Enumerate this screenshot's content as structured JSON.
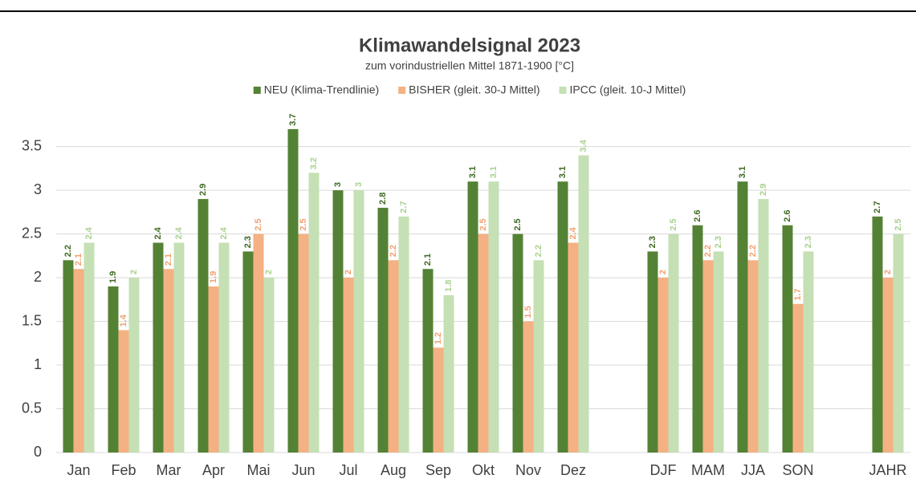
{
  "chart_data": {
    "type": "bar",
    "title": "Klimawandelsignal 2023",
    "subtitle": "zum vorindustriellen Mittel 1871-1900 [°C]",
    "categories": [
      "Jan",
      "Feb",
      "Mar",
      "Apr",
      "Mai",
      "Jun",
      "Jul",
      "Aug",
      "Sep",
      "Okt",
      "Nov",
      "Dez",
      null,
      "DJF",
      "MAM",
      "JJA",
      "SON",
      null,
      "JAHR"
    ],
    "series": [
      {
        "name": "NEU (Klima-Trendlinie)",
        "color": "#548235",
        "label_color": "#3f6a22",
        "values": [
          2.2,
          1.9,
          2.4,
          2.9,
          2.3,
          3.7,
          3,
          2.8,
          2.1,
          3.1,
          2.5,
          3.1,
          null,
          2.3,
          2.6,
          3.1,
          2.6,
          null,
          2.7
        ]
      },
      {
        "name": "BISHER (gleit. 30-J Mittel)",
        "color": "#f4b183",
        "label_color": "#f2a070",
        "values": [
          2.1,
          1.4,
          2.1,
          1.9,
          2.5,
          2.5,
          2,
          2.2,
          1.2,
          2.5,
          1.5,
          2.4,
          null,
          2,
          2.2,
          2.2,
          1.7,
          null,
          2
        ]
      },
      {
        "name": "IPCC (gleit. 10-J Mittel)",
        "color": "#c5e0b4",
        "label_color": "#a9d18e",
        "values": [
          2.4,
          2,
          2.4,
          2.4,
          2,
          3.2,
          3,
          2.7,
          1.8,
          3.1,
          2.2,
          3.4,
          null,
          2.5,
          2.3,
          2.9,
          2.3,
          null,
          2.5
        ]
      }
    ],
    "ylim": [
      0,
      3.8
    ],
    "yticks": [
      0,
      0.5,
      1,
      1.5,
      2,
      2.5,
      3,
      3.5
    ],
    "grid": true,
    "legend": "top",
    "data_labels": true
  }
}
